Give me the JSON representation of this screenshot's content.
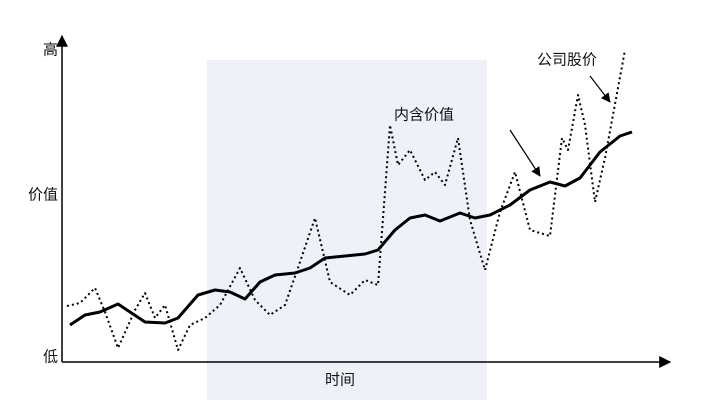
{
  "chart_data": {
    "type": "line",
    "xlabel": "时间",
    "xlim": [
      0,
      610
    ],
    "ylim": [
      0,
      315
    ],
    "yticks": [
      {
        "value": 310,
        "label": "高"
      },
      {
        "value": 165,
        "label": "价值"
      },
      {
        "value": 3,
        "label": "低"
      }
    ],
    "annotations": [
      "内含价值",
      "公司股价"
    ],
    "series": [
      {
        "name": "内含价值",
        "color": "#000000",
        "style": "solid",
        "x": [
          8,
          23,
          38,
          56,
          68,
          83,
          103,
          116,
          136,
          153,
          168,
          183,
          198,
          213,
          233,
          248,
          263,
          283,
          303,
          316,
          333,
          348,
          363,
          378,
          398,
          413,
          428,
          448,
          468,
          488,
          503,
          518,
          538,
          558,
          570
        ],
        "values": [
          35,
          45,
          48,
          56,
          48,
          38,
          37,
          42,
          65,
          70,
          68,
          61,
          78,
          85,
          87,
          92,
          102,
          104,
          106,
          110,
          130,
          142,
          145,
          139,
          147,
          142,
          145,
          155,
          170,
          178,
          174,
          182,
          208,
          224,
          228
        ]
      },
      {
        "name": "公司股价",
        "color": "#000000",
        "style": "dotted",
        "x": [
          5,
          18,
          33,
          43,
          56,
          73,
          83,
          93,
          103,
          116,
          128,
          143,
          158,
          178,
          193,
          208,
          223,
          238,
          253,
          268,
          288,
          303,
          316,
          328,
          336,
          348,
          363,
          373,
          383,
          396,
          408,
          423,
          438,
          453,
          468,
          488,
          500,
          506,
          516,
          523,
          533,
          543,
          563
        ],
        "values": [
          54,
          57,
          72,
          48,
          12,
          50,
          67,
          42,
          55,
          10,
          35,
          42,
          55,
          92,
          60,
          45,
          55,
          98,
          142,
          78,
          65,
          80,
          75,
          235,
          195,
          210,
          180,
          188,
          175,
          222,
          140,
          90,
          148,
          188,
          130,
          124,
          222,
          210,
          265,
          235,
          158,
          202,
          310
        ]
      }
    ]
  }
}
